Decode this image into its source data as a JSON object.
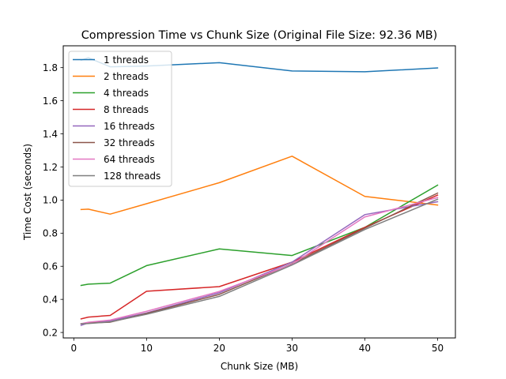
{
  "chart_data": {
    "type": "line",
    "title": "Compression Time vs Chunk Size (Original File Size: 92.36 MB)",
    "xlabel": "Chunk Size (MB)",
    "ylabel": "Time Cost (seconds)",
    "xlim": [
      -1.45,
      52.45
    ],
    "ylim": [
      0.167,
      1.932
    ],
    "xticks": [
      0,
      10,
      20,
      30,
      40,
      50
    ],
    "yticks": [
      0.2,
      0.4,
      0.6,
      0.8,
      1.0,
      1.2,
      1.4,
      1.6,
      1.8
    ],
    "ytick_labels": [
      "0.2",
      "0.4",
      "0.6",
      "0.8",
      "1.0",
      "1.2",
      "1.4",
      "1.6",
      "1.8"
    ],
    "grid": false,
    "legend_position": "top-left",
    "x": [
      1,
      2,
      5,
      10,
      20,
      30,
      40,
      50
    ],
    "series": [
      {
        "name": "1 threads",
        "color": "#1f77b4",
        "values": [
          1.845,
          1.86,
          1.805,
          1.81,
          1.83,
          1.78,
          1.775,
          1.798
        ]
      },
      {
        "name": "2 threads",
        "color": "#ff7f0e",
        "values": [
          0.943,
          0.945,
          0.915,
          0.978,
          1.105,
          1.265,
          1.022,
          0.97
        ]
      },
      {
        "name": "4 threads",
        "color": "#2ca02c",
        "values": [
          0.484,
          0.492,
          0.498,
          0.604,
          0.705,
          0.665,
          0.835,
          1.09
        ]
      },
      {
        "name": "8 threads",
        "color": "#d62728",
        "values": [
          0.282,
          0.293,
          0.303,
          0.449,
          0.477,
          0.625,
          0.835,
          1.03
        ]
      },
      {
        "name": "16 threads",
        "color": "#9467bd",
        "values": [
          0.243,
          0.258,
          0.27,
          0.318,
          0.44,
          0.625,
          0.912,
          0.99
        ]
      },
      {
        "name": "32 threads",
        "color": "#8c564b",
        "values": [
          0.252,
          0.258,
          0.262,
          0.315,
          0.43,
          0.615,
          0.83,
          1.042
        ]
      },
      {
        "name": "64 threads",
        "color": "#e377c2",
        "values": [
          0.253,
          0.262,
          0.275,
          0.328,
          0.448,
          0.612,
          0.898,
          1.015
        ]
      },
      {
        "name": "128 threads",
        "color": "#7f7f7f",
        "values": [
          0.252,
          0.254,
          0.264,
          0.31,
          0.418,
          0.608,
          0.822,
          1.005
        ]
      }
    ]
  }
}
